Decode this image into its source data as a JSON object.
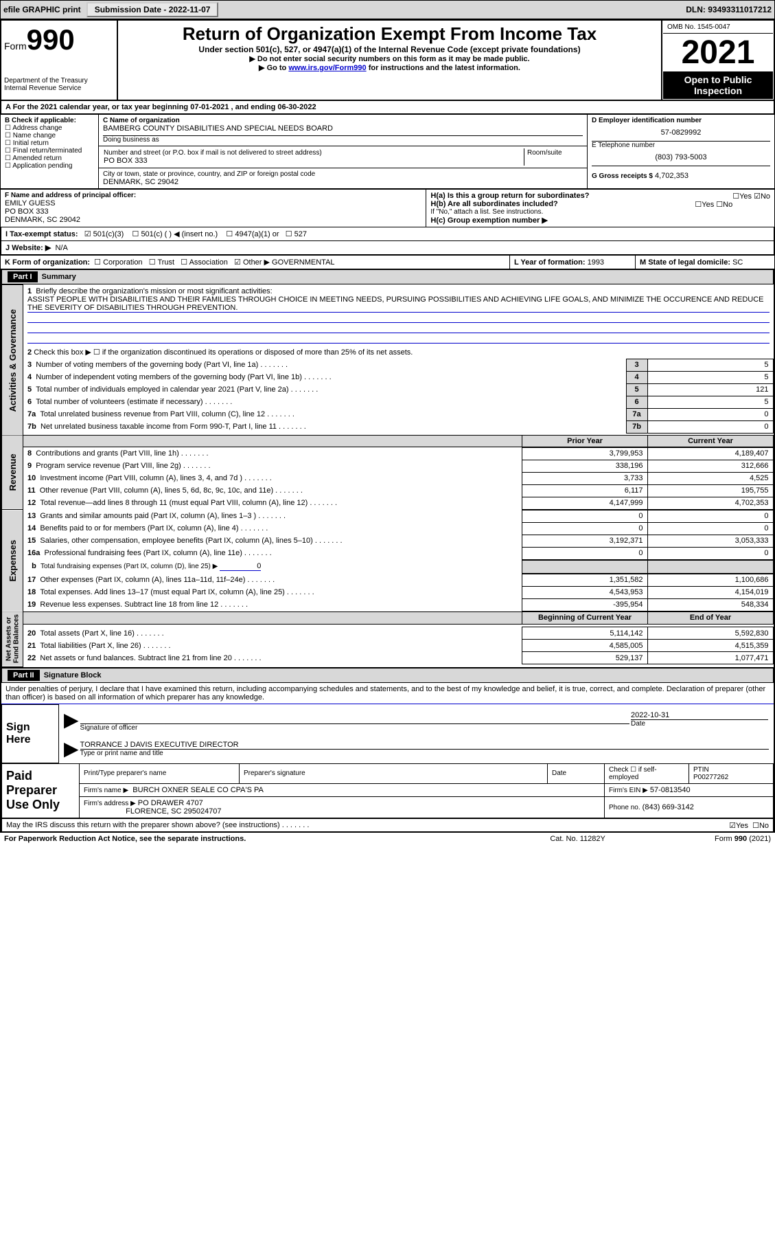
{
  "topbar": {
    "efile": "efile GRAPHIC print",
    "sub_lbl": "Submission Date - ",
    "sub_date": "2022-11-07",
    "dln_lbl": "DLN: ",
    "dln": "93493311017212"
  },
  "header": {
    "form_word": "Form",
    "form_no": "990",
    "dept": "Department of the Treasury\nInternal Revenue Service",
    "title": "Return of Organization Exempt From Income Tax",
    "subtitle": "Under section 501(c), 527, or 4947(a)(1) of the Internal Revenue Code (except private foundations)",
    "instr1": "▶ Do not enter social security numbers on this form as it may be made public.",
    "instr2_pre": "▶ Go to ",
    "instr2_link": "www.irs.gov/Form990",
    "instr2_post": " for instructions and the latest information.",
    "omb": "OMB No. 1545-0047",
    "year": "2021",
    "open": "Open to Public\nInspection"
  },
  "A": {
    "text_pre": "A For the 2021 calendar year, or tax year beginning ",
    "begin": "07-01-2021",
    "mid": " , and ending ",
    "end": "06-30-2022"
  },
  "B": {
    "label": "B Check if applicable:",
    "items": [
      "Address change",
      "Name change",
      "Initial return",
      "Final return/terminated",
      "Amended return",
      "Application pending"
    ]
  },
  "C": {
    "name_lbl": "C Name of organization",
    "name": "BAMBERG COUNTY DISABILITIES AND SPECIAL NEEDS BOARD",
    "dba_lbl": "Doing business as",
    "dba": "",
    "addr_lbl": "Number and street (or P.O. box if mail is not delivered to street address)",
    "room_lbl": "Room/suite",
    "addr": "PO BOX 333",
    "city_lbl": "City or town, state or province, country, and ZIP or foreign postal code",
    "city": "DENMARK, SC  29042"
  },
  "D": {
    "lbl": "D Employer identification number",
    "val": "57-0829992"
  },
  "E": {
    "lbl": "E Telephone number",
    "val": "(803) 793-5003"
  },
  "G": {
    "lbl": "G Gross receipts $",
    "val": "4,702,353"
  },
  "F": {
    "lbl": "F Name and address of principal officer:",
    "name": "EMILY GUESS",
    "addr1": "PO BOX 333",
    "addr2": "DENMARK, SC  29042"
  },
  "H": {
    "a": "H(a)  Is this a group return for subordinates?",
    "b": "H(b)  Are all subordinates included?",
    "b_note": "If \"No,\" attach a list. See instructions.",
    "c": "H(c)  Group exemption number ▶",
    "yes": "Yes",
    "no": "No"
  },
  "I": {
    "lbl": "I  Tax-exempt status:",
    "o1": "501(c)(3)",
    "o2": "501(c) (  ) ◀ (insert no.)",
    "o3": "4947(a)(1) or",
    "o4": "527"
  },
  "J": {
    "lbl": "J  Website: ▶",
    "val": "N/A"
  },
  "K": {
    "lbl": "K Form of organization:",
    "o1": "Corporation",
    "o2": "Trust",
    "o3": "Association",
    "o4": "Other ▶",
    "other": "GOVERNMENTAL"
  },
  "L": {
    "lbl": "L Year of formation:",
    "val": "1993"
  },
  "M": {
    "lbl": "M State of legal domicile:",
    "val": "SC"
  },
  "part1": {
    "hdr": "Part I",
    "title": "Summary",
    "q1_lbl": "1",
    "q1": "Briefly describe the organization's mission or most significant activities:",
    "q1_val": "ASSIST PEOPLE WITH DISABILITIES AND THEIR FAMILIES THROUGH CHOICE IN MEETING NEEDS, PURSUING POSSIBILITIES AND ACHIEVING LIFE GOALS, AND MINIMIZE THE OCCURENCE AND REDUCE THE SEVERITY OF DISABILITIES THROUGH PREVENTION.",
    "q2_lbl": "2",
    "q2": "Check this box ▶ ☐ if the organization discontinued its operations or disposed of more than 25% of its net assets.",
    "rows_gov": [
      {
        "n": "3",
        "t": "Number of voting members of the governing body (Part VI, line 1a)",
        "v": "5"
      },
      {
        "n": "4",
        "t": "Number of independent voting members of the governing body (Part VI, line 1b)",
        "v": "5"
      },
      {
        "n": "5",
        "t": "Total number of individuals employed in calendar year 2021 (Part V, line 2a)",
        "v": "121"
      },
      {
        "n": "6",
        "t": "Total number of volunteers (estimate if necessary)",
        "v": "5"
      },
      {
        "n": "7a",
        "t": "Total unrelated business revenue from Part VIII, column (C), line 12",
        "v": "0"
      },
      {
        "n": "7b",
        "t": "Net unrelated business taxable income from Form 990-T, Part I, line 11",
        "v": "0"
      }
    ],
    "col_prior": "Prior Year",
    "col_curr": "Current Year",
    "rows_rev": [
      {
        "n": "8",
        "t": "Contributions and grants (Part VIII, line 1h)",
        "p": "3,799,953",
        "c": "4,189,407"
      },
      {
        "n": "9",
        "t": "Program service revenue (Part VIII, line 2g)",
        "p": "338,196",
        "c": "312,666"
      },
      {
        "n": "10",
        "t": "Investment income (Part VIII, column (A), lines 3, 4, and 7d )",
        "p": "3,733",
        "c": "4,525"
      },
      {
        "n": "11",
        "t": "Other revenue (Part VIII, column (A), lines 5, 6d, 8c, 9c, 10c, and 11e)",
        "p": "6,117",
        "c": "195,755"
      },
      {
        "n": "12",
        "t": "Total revenue—add lines 8 through 11 (must equal Part VIII, column (A), line 12)",
        "p": "4,147,999",
        "c": "4,702,353"
      }
    ],
    "rows_exp": [
      {
        "n": "13",
        "t": "Grants and similar amounts paid (Part IX, column (A), lines 1–3 )",
        "p": "0",
        "c": "0"
      },
      {
        "n": "14",
        "t": "Benefits paid to or for members (Part IX, column (A), line 4)",
        "p": "0",
        "c": "0"
      },
      {
        "n": "15",
        "t": "Salaries, other compensation, employee benefits (Part IX, column (A), lines 5–10)",
        "p": "3,192,371",
        "c": "3,053,333"
      },
      {
        "n": "16a",
        "t": "Professional fundraising fees (Part IX, column (A), line 11e)",
        "p": "0",
        "c": "0"
      }
    ],
    "row_16b_lbl": "b",
    "row_16b": "Total fundraising expenses (Part IX, column (D), line 25) ▶",
    "row_16b_val": "0",
    "rows_exp2": [
      {
        "n": "17",
        "t": "Other expenses (Part IX, column (A), lines 11a–11d, 11f–24e)",
        "p": "1,351,582",
        "c": "1,100,686"
      },
      {
        "n": "18",
        "t": "Total expenses. Add lines 13–17 (must equal Part IX, column (A), line 25)",
        "p": "4,543,953",
        "c": "4,154,019"
      },
      {
        "n": "19",
        "t": "Revenue less expenses. Subtract line 18 from line 12",
        "p": "-395,954",
        "c": "548,334"
      }
    ],
    "col_beg": "Beginning of Current Year",
    "col_end": "End of Year",
    "rows_net": [
      {
        "n": "20",
        "t": "Total assets (Part X, line 16)",
        "p": "5,114,142",
        "c": "5,592,830"
      },
      {
        "n": "21",
        "t": "Total liabilities (Part X, line 26)",
        "p": "4,585,005",
        "c": "4,515,359"
      },
      {
        "n": "22",
        "t": "Net assets or fund balances. Subtract line 21 from line 20",
        "p": "529,137",
        "c": "1,077,471"
      }
    ],
    "vlabels": {
      "gov": "Activities & Governance",
      "rev": "Revenue",
      "exp": "Expenses",
      "net": "Net Assets or\nFund Balances"
    }
  },
  "part2": {
    "hdr": "Part II",
    "title": "Signature Block",
    "decl": "Under penalties of perjury, I declare that I have examined this return, including accompanying schedules and statements, and to the best of my knowledge and belief, it is true, correct, and complete. Declaration of preparer (other than officer) is based on all information of which preparer has any knowledge.",
    "sign_here": "Sign Here",
    "sig_lbl": "Signature of officer",
    "date_lbl": "Date",
    "sig_date": "2022-10-31",
    "officer": "TORRANCE J DAVIS  EXECUTIVE DIRECTOR",
    "officer_lbl": "Type or print name and title",
    "paid": "Paid Preparer Use Only",
    "prep_name_lbl": "Print/Type preparer's name",
    "prep_sig_lbl": "Preparer's signature",
    "prep_date_lbl": "Date",
    "self_emp": "Check ☐ if self-employed",
    "ptin_lbl": "PTIN",
    "ptin": "P00277262",
    "firm_name_lbl": "Firm's name    ▶",
    "firm_name": "BURCH OXNER SEALE CO CPA'S PA",
    "firm_ein_lbl": "Firm's EIN ▶",
    "firm_ein": "57-0813540",
    "firm_addr_lbl": "Firm's address ▶",
    "firm_addr1": "PO DRAWER 4707",
    "firm_addr2": "FLORENCE, SC  295024707",
    "phone_lbl": "Phone no.",
    "phone": "(843) 669-3142",
    "discuss": "May the IRS discuss this return with the preparer shown above? (see instructions)",
    "yes": "Yes",
    "no": "No"
  },
  "footer": {
    "pra": "For Paperwork Reduction Act Notice, see the separate instructions.",
    "cat": "Cat. No. 11282Y",
    "form": "Form 990 (2021)"
  }
}
